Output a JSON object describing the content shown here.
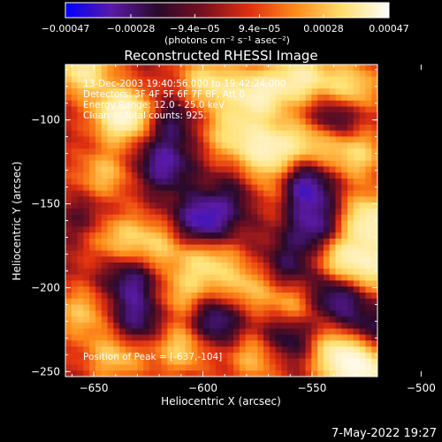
{
  "chart_data": {
    "type": "heatmap",
    "title": "Reconstructed RHESSI Image",
    "xlabel": "Heliocentric X (arcsec)",
    "ylabel": "Heliocentric Y (arcsec)",
    "xlim": [
      -663,
      -520
    ],
    "ylim": [
      -253,
      -67
    ],
    "xticks": [
      -650,
      -600,
      -550,
      -500
    ],
    "xtick_labels": [
      "−650",
      "−600",
      "−550",
      "−500"
    ],
    "yticks": [
      -100,
      -150,
      -200,
      -250
    ],
    "ytick_labels": [
      "−100",
      "−150",
      "−200",
      "−250"
    ],
    "colorbar": {
      "min": -0.00047,
      "max": 0.00047,
      "ticks": [
        -0.00047,
        -0.00028,
        -9.4e-05,
        9.4e-05,
        0.00028,
        0.00047
      ],
      "tick_labels": [
        "−0.00047",
        "−0.00028",
        "−9.4e−05",
        "9.4e−05",
        "0.00028",
        "0.00047"
      ],
      "units_label": "(photons cm⁻² s⁻¹ asec⁻²)",
      "stops": [
        "#0000ff",
        "#5a1aa6",
        "#2a0a2a",
        "#7a1020",
        "#e03010",
        "#ff8c1a",
        "#ffe070",
        "#ffffff"
      ]
    },
    "info_lines": [
      "13-Dec-2003 19:40:56.000 to 19:42:24.000",
      "Detectors: 3F 4F 5F 6F 7F 8F, Att 0",
      "Energy Range: 12.0 - 25.0 keV",
      "Clean     Total counts: 925."
    ],
    "peak_text": "Position of Peak = [-637,-104]",
    "grid": false,
    "blobs": [
      {
        "x": -636,
        "y": -97,
        "v": 1.0
      },
      {
        "x": -645,
        "y": -133,
        "v": 0.45
      },
      {
        "x": -655,
        "y": -70,
        "v": 0.7
      },
      {
        "x": -598,
        "y": -78,
        "v": 0.6
      },
      {
        "x": -575,
        "y": -85,
        "v": 0.75
      },
      {
        "x": -555,
        "y": -75,
        "v": 0.7
      },
      {
        "x": -533,
        "y": -82,
        "v": 0.65
      },
      {
        "x": -588,
        "y": -108,
        "v": 0.5
      },
      {
        "x": -570,
        "y": -118,
        "v": 0.75
      },
      {
        "x": -568,
        "y": -142,
        "v": 0.55
      },
      {
        "x": -550,
        "y": -112,
        "v": 0.55
      },
      {
        "x": -530,
        "y": -120,
        "v": 0.55
      },
      {
        "x": -524,
        "y": -160,
        "v": 0.8
      },
      {
        "x": -522,
        "y": -188,
        "v": 0.6
      },
      {
        "x": -538,
        "y": -183,
        "v": 0.65
      },
      {
        "x": -642,
        "y": -168,
        "v": 0.55
      },
      {
        "x": -622,
        "y": -175,
        "v": 0.5
      },
      {
        "x": -598,
        "y": -185,
        "v": 0.55
      },
      {
        "x": -610,
        "y": -205,
        "v": 0.45
      },
      {
        "x": -580,
        "y": -200,
        "v": 0.45
      },
      {
        "x": -558,
        "y": -210,
        "v": 0.5
      },
      {
        "x": -655,
        "y": -215,
        "v": 0.45
      },
      {
        "x": -640,
        "y": -240,
        "v": 0.5
      },
      {
        "x": -610,
        "y": -235,
        "v": 0.55
      },
      {
        "x": -575,
        "y": -240,
        "v": 0.5
      },
      {
        "x": -538,
        "y": -238,
        "v": 0.7
      },
      {
        "x": -527,
        "y": -250,
        "v": 0.9
      },
      {
        "x": -618,
        "y": -127,
        "v": -0.55
      },
      {
        "x": -650,
        "y": -160,
        "v": -0.35
      },
      {
        "x": -600,
        "y": -160,
        "v": -0.7
      },
      {
        "x": -582,
        "y": -145,
        "v": -0.35
      },
      {
        "x": -555,
        "y": -140,
        "v": -0.8
      },
      {
        "x": -540,
        "y": -98,
        "v": -0.6
      },
      {
        "x": -548,
        "y": -165,
        "v": -0.55
      },
      {
        "x": -632,
        "y": -196,
        "v": -0.5
      },
      {
        "x": -630,
        "y": -220,
        "v": -0.5
      },
      {
        "x": -595,
        "y": -220,
        "v": -0.6
      },
      {
        "x": -562,
        "y": -230,
        "v": -0.55
      },
      {
        "x": -540,
        "y": -205,
        "v": -0.6
      },
      {
        "x": -560,
        "y": -188,
        "v": -0.4
      },
      {
        "x": -615,
        "y": -100,
        "v": -0.4
      },
      {
        "x": -525,
        "y": -225,
        "v": -0.4
      }
    ]
  },
  "footer": {
    "timestamp": "7-May-2022 19:27"
  }
}
